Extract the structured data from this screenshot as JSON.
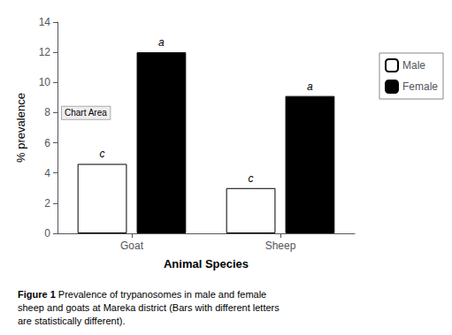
{
  "chart_data": {
    "type": "bar",
    "categories": [
      "Goat",
      "Sheep"
    ],
    "series": [
      {
        "name": "Male",
        "color": "#ffffff",
        "values": [
          4.6,
          3.0
        ]
      },
      {
        "name": "Female",
        "color": "#000000",
        "values": [
          12.0,
          9.1
        ]
      }
    ],
    "edge_color": "#000000",
    "annotations": [
      {
        "text": "c",
        "series": "Male",
        "category": "Goat"
      },
      {
        "text": "c",
        "series": "Male",
        "category": "Sheep"
      },
      {
        "text": "a",
        "series": "Female",
        "category": "Goat"
      },
      {
        "text": "a",
        "series": "Female",
        "category": "Sheep"
      },
      {
        "text": "Chart Area"
      }
    ],
    "x_label": "Animal Species",
    "y_label": "% prevalence",
    "ylim": [
      0,
      14
    ],
    "yticks": [
      0,
      2,
      4,
      6,
      8,
      10,
      12,
      14
    ],
    "grid": false,
    "legend": "right",
    "caption_bold": "Figure 1",
    "caption": " Prevalence of trypanosomes in male and female\nsheep and goats at Mareka district (Bars with different letters\nare statistically different)."
  }
}
